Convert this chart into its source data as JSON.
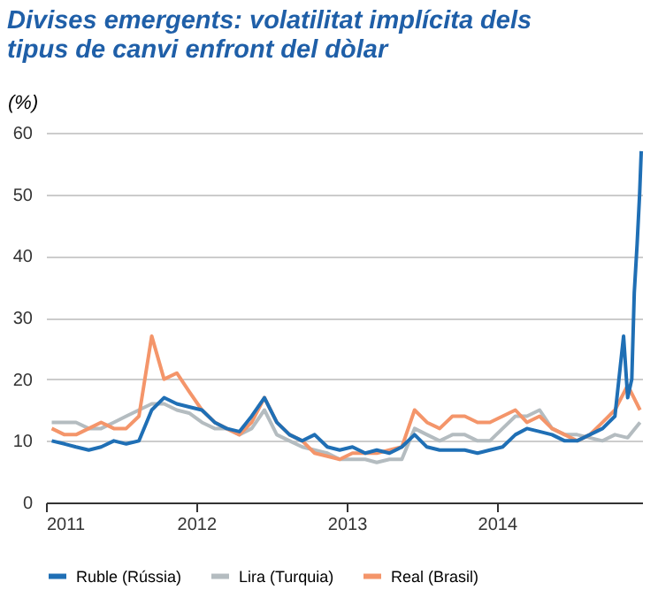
{
  "chart_data": {
    "type": "line",
    "title": "Divises emergents: volatilitat implícita dels tipus de canvi enfront del dòlar",
    "ylabel": "(%)",
    "x": [
      "2011-01-15",
      "2011-02-15",
      "2011-03-15",
      "2011-04-15",
      "2011-05-15",
      "2011-06-15",
      "2011-07-15",
      "2011-08-15",
      "2011-09-15",
      "2011-10-15",
      "2011-11-15",
      "2011-12-15",
      "2012-01-15",
      "2012-02-15",
      "2012-03-15",
      "2012-04-15",
      "2012-05-15",
      "2012-06-15",
      "2012-07-15",
      "2012-08-15",
      "2012-09-15",
      "2012-10-15",
      "2012-11-15",
      "2012-12-15",
      "2013-01-15",
      "2013-02-15",
      "2013-03-15",
      "2013-04-15",
      "2013-05-15",
      "2013-06-15",
      "2013-07-15",
      "2013-08-15",
      "2013-09-15",
      "2013-10-15",
      "2013-11-15",
      "2013-12-15",
      "2014-01-15",
      "2014-02-15",
      "2014-03-15",
      "2014-04-15",
      "2014-05-15",
      "2014-06-15",
      "2014-07-15",
      "2014-08-15",
      "2014-09-15",
      "2014-10-15",
      "2014-11-15",
      "2014-12-15"
    ],
    "series": [
      {
        "name": "Lira (Turquia)",
        "color": "#b4bcc0",
        "values": [
          13,
          13,
          13,
          12,
          12,
          13,
          14,
          15,
          16,
          16,
          15,
          14.5,
          13,
          12,
          12,
          11,
          12,
          15,
          11,
          10,
          9,
          8.5,
          8,
          7,
          7,
          7,
          6.5,
          7,
          7,
          12,
          11,
          10,
          11,
          11,
          10,
          10,
          12,
          14,
          14,
          15,
          12,
          11,
          11,
          10.5,
          10,
          11,
          10.5,
          13
        ]
      },
      {
        "name": "Real (Brasil)",
        "color": "#f4956a",
        "values": [
          12,
          11,
          11,
          12,
          13,
          12,
          12,
          14,
          27,
          20,
          21,
          18,
          15,
          13,
          12,
          11,
          13,
          17,
          13,
          11,
          10,
          8,
          7.5,
          7,
          8,
          8,
          8,
          8.5,
          9,
          15,
          13,
          12,
          14,
          14,
          13,
          13,
          14,
          15,
          13,
          14,
          12,
          11,
          10,
          11,
          13,
          15,
          19,
          15
        ]
      },
      {
        "name": "Ruble (Rússia)",
        "color": "#1f6fb5",
        "x": [
          "2011-01-15",
          "2011-02-15",
          "2011-03-15",
          "2011-04-15",
          "2011-05-15",
          "2011-06-15",
          "2011-07-15",
          "2011-08-15",
          "2011-09-15",
          "2011-10-15",
          "2011-11-15",
          "2011-12-15",
          "2012-01-15",
          "2012-02-15",
          "2012-03-15",
          "2012-04-15",
          "2012-05-15",
          "2012-06-15",
          "2012-07-15",
          "2012-08-15",
          "2012-09-15",
          "2012-10-15",
          "2012-11-15",
          "2012-12-15",
          "2013-01-15",
          "2013-02-15",
          "2013-03-15",
          "2013-04-15",
          "2013-05-15",
          "2013-06-15",
          "2013-07-15",
          "2013-08-15",
          "2013-09-15",
          "2013-10-15",
          "2013-11-15",
          "2013-12-15",
          "2014-01-15",
          "2014-02-15",
          "2014-03-15",
          "2014-04-15",
          "2014-05-15",
          "2014-06-15",
          "2014-07-15",
          "2014-08-15",
          "2014-09-15",
          "2014-10-15",
          "2014-11-05",
          "2014-11-15",
          "2014-11-25",
          "2014-12-01",
          "2014-12-08",
          "2014-12-14",
          "2014-12-18"
        ],
        "values": [
          10,
          9.5,
          9,
          8.5,
          9,
          10,
          9.5,
          10,
          15,
          17,
          16,
          15.5,
          15,
          13,
          12,
          11.5,
          14,
          17,
          13,
          11,
          10,
          11,
          9,
          8.5,
          9,
          8,
          8.5,
          8,
          9,
          11,
          9,
          8.5,
          8.5,
          8.5,
          8,
          8.5,
          9,
          11,
          12,
          11.5,
          11,
          10,
          10,
          11,
          12,
          14,
          27,
          17,
          20,
          34,
          42,
          50,
          57
        ]
      }
    ],
    "xlim": [
      "2011-01-01",
      "2014-12-20"
    ],
    "xticks": [
      "2011",
      "2012",
      "2013",
      "2014"
    ],
    "ylim": [
      0,
      60
    ],
    "yticks": [
      0,
      10,
      20,
      30,
      40,
      50,
      60
    ],
    "grid": "y",
    "legend": "bottom",
    "marker": "none",
    "line_style": "solid"
  }
}
